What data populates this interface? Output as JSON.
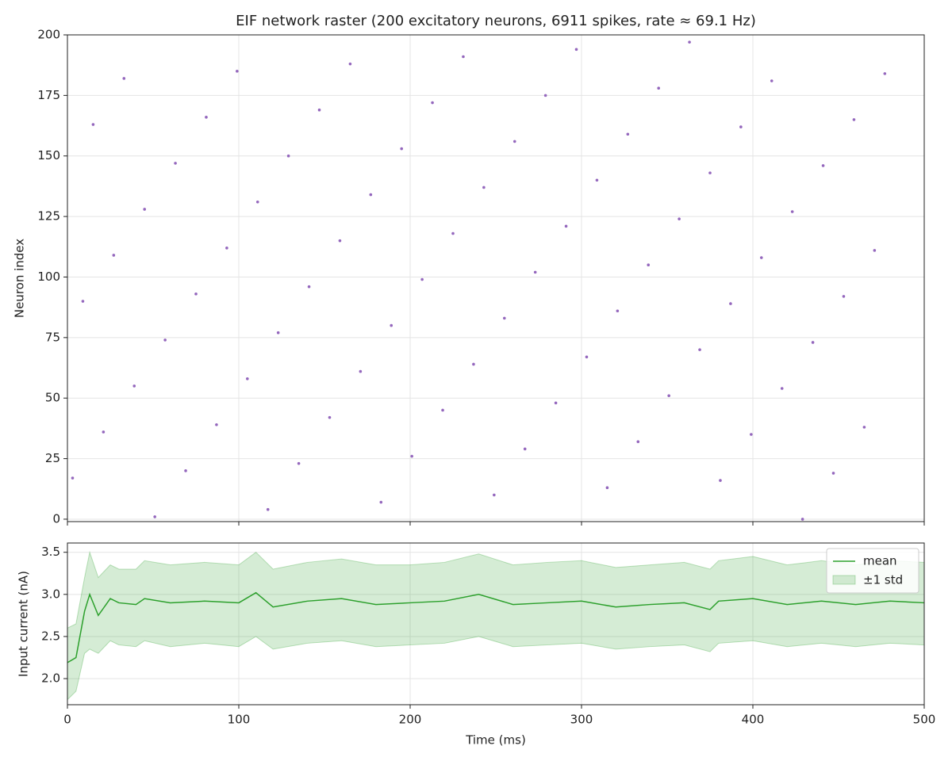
{
  "chart_data": [
    {
      "type": "scatter",
      "title": "EIF network raster (200 excitatory neurons, 6911 spikes, rate ≈ 69.1 Hz)",
      "y_label": "Neuron index",
      "color": "#9467bd",
      "x": [
        3,
        9,
        15,
        21,
        27,
        33,
        39,
        45,
        51,
        57,
        63,
        69,
        75,
        81,
        87,
        93,
        99,
        105,
        111,
        117,
        123,
        129,
        135,
        141,
        147,
        153,
        159,
        165,
        171,
        177,
        183,
        189,
        195,
        201,
        207,
        213,
        219,
        225,
        231,
        237,
        243,
        249,
        255,
        261,
        267,
        273,
        279,
        285,
        291,
        297,
        303,
        309,
        315,
        321,
        327,
        333,
        339,
        345,
        351,
        357,
        363,
        369,
        375,
        381,
        387,
        393,
        399,
        405,
        411,
        417,
        423,
        429,
        435,
        441,
        447,
        453,
        459,
        465,
        471,
        477
      ],
      "y": [
        17,
        90,
        163,
        36,
        109,
        182,
        55,
        128,
        1,
        74,
        147,
        20,
        93,
        166,
        39,
        112,
        185,
        58,
        131,
        4,
        77,
        150,
        23,
        96,
        169,
        42,
        115,
        188,
        61,
        134,
        7,
        80,
        153,
        26,
        99,
        172,
        45,
        118,
        191,
        64,
        137,
        10,
        83,
        156,
        29,
        102,
        175,
        48,
        121,
        194,
        67,
        140,
        13,
        86,
        159,
        32,
        105,
        178,
        51,
        124,
        197,
        70,
        143,
        16,
        89,
        162,
        35,
        108,
        181,
        54,
        127,
        0,
        73,
        146,
        19,
        92,
        165,
        38,
        111,
        184
      ],
      "xlim": [
        0,
        500
      ],
      "xticks": [
        0,
        100,
        200,
        300,
        400,
        500
      ],
      "ylim": [
        -1,
        200
      ],
      "yticks": [
        0,
        25,
        50,
        75,
        100,
        125,
        150,
        175,
        200
      ],
      "grid": true
    },
    {
      "type": "line",
      "x_label": "Time (ms)",
      "y_label": "Input current (nA)",
      "x": [
        0,
        5,
        10,
        13,
        18,
        25,
        30,
        40,
        45,
        60,
        80,
        100,
        110,
        120,
        140,
        160,
        180,
        200,
        220,
        240,
        260,
        280,
        300,
        320,
        340,
        360,
        375,
        380,
        400,
        420,
        440,
        460,
        480,
        500
      ],
      "series": [
        {
          "name": "mean",
          "color": "#2ca02c",
          "values": [
            2.19,
            2.25,
            2.8,
            3.0,
            2.75,
            2.95,
            2.9,
            2.88,
            2.95,
            2.9,
            2.92,
            2.9,
            3.02,
            2.85,
            2.92,
            2.95,
            2.88,
            2.9,
            2.92,
            3.0,
            2.88,
            2.9,
            2.92,
            2.85,
            2.88,
            2.9,
            2.82,
            2.92,
            2.95,
            2.88,
            2.92,
            2.88,
            2.92,
            2.9
          ]
        }
      ],
      "band": {
        "name": "±1 std",
        "color": "#2ca02c",
        "lower": [
          1.75,
          1.85,
          2.3,
          2.35,
          2.3,
          2.45,
          2.4,
          2.38,
          2.45,
          2.38,
          2.42,
          2.38,
          2.5,
          2.35,
          2.42,
          2.45,
          2.38,
          2.4,
          2.42,
          2.5,
          2.38,
          2.4,
          2.42,
          2.35,
          2.38,
          2.4,
          2.32,
          2.42,
          2.45,
          2.38,
          2.42,
          2.38,
          2.42,
          2.4
        ],
        "upper": [
          2.6,
          2.65,
          3.2,
          3.5,
          3.2,
          3.35,
          3.3,
          3.3,
          3.4,
          3.35,
          3.38,
          3.35,
          3.5,
          3.3,
          3.38,
          3.42,
          3.35,
          3.35,
          3.38,
          3.48,
          3.35,
          3.38,
          3.4,
          3.32,
          3.35,
          3.38,
          3.3,
          3.4,
          3.45,
          3.35,
          3.4,
          3.35,
          3.4,
          3.38
        ]
      },
      "xlim": [
        0,
        500
      ],
      "xticks": [
        0,
        100,
        200,
        300,
        400,
        500
      ],
      "ylim": [
        1.69,
        3.61
      ],
      "yticks": [
        {
          "value": 2,
          "label": "2.0"
        },
        2.5,
        {
          "value": 3,
          "label": "3.0"
        },
        3.5
      ],
      "grid": true,
      "legend": "upper right"
    }
  ]
}
